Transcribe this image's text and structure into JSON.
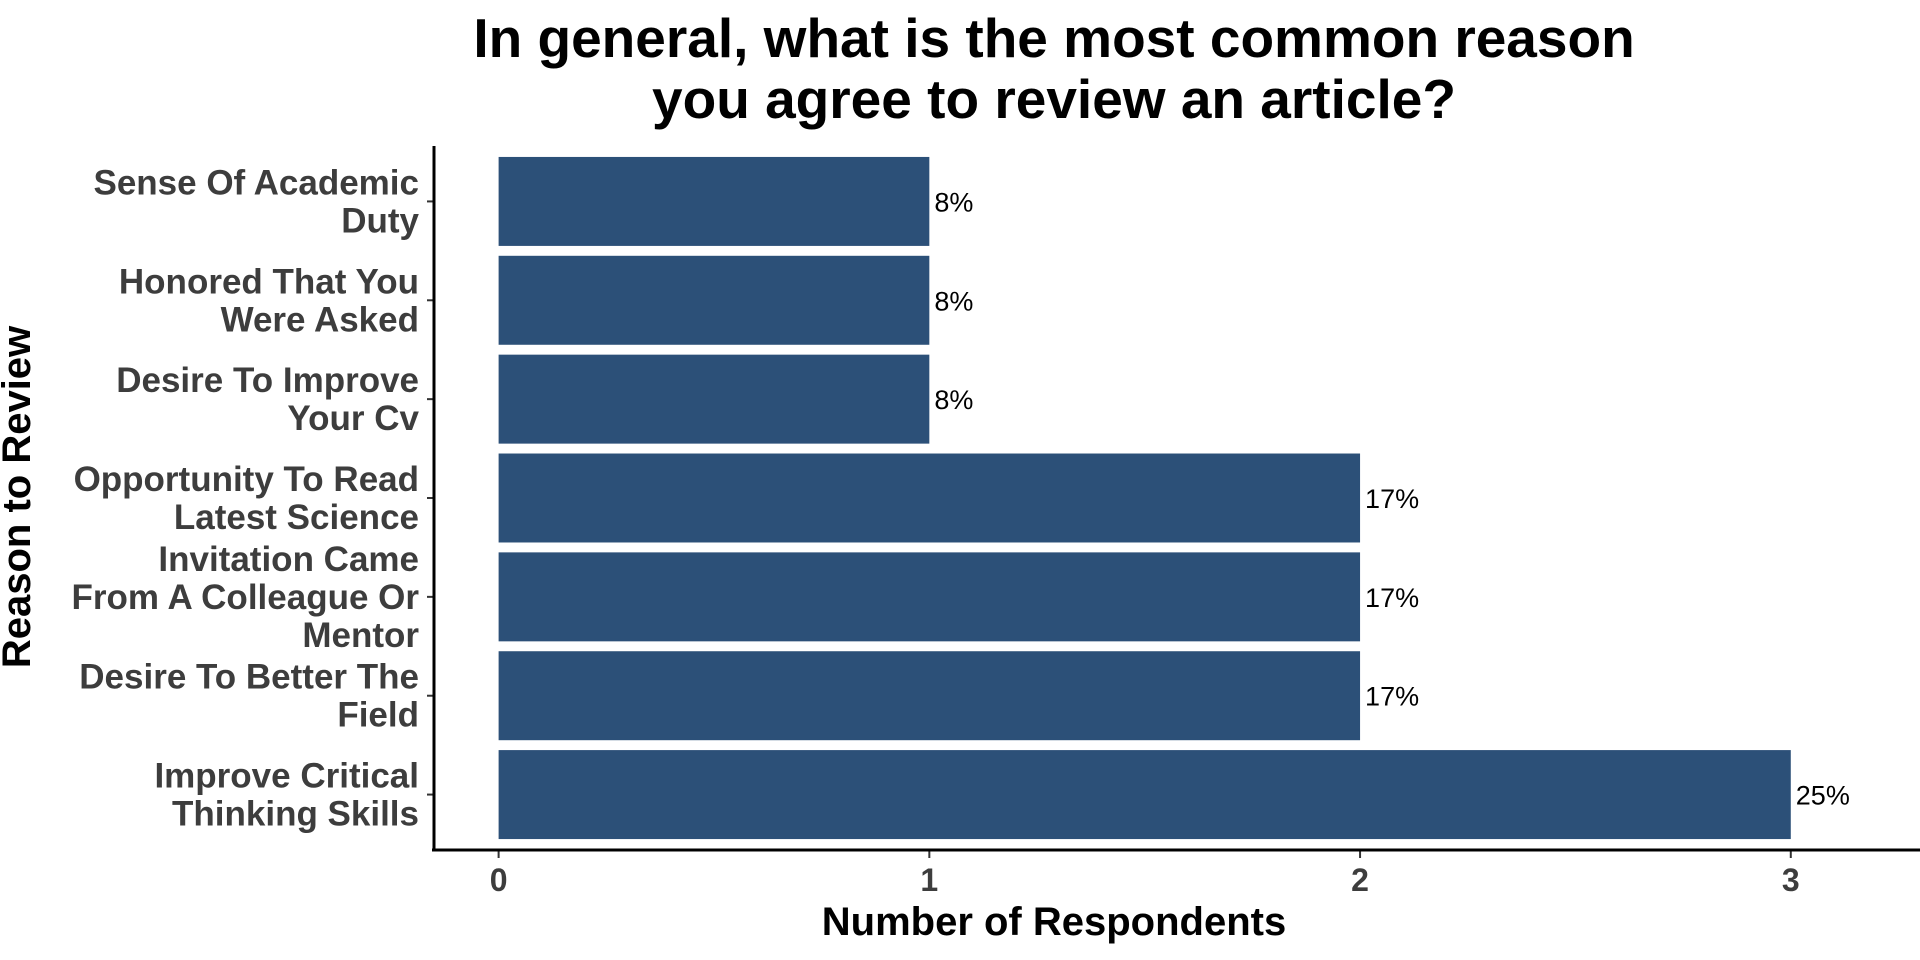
{
  "chart_data": {
    "type": "bar",
    "orientation": "horizontal",
    "title": "In general, what is the most common reason you agree to review an article?",
    "title_lines": [
      "In general, what is the most common reason",
      "you agree to review an article?"
    ],
    "xlabel": "Number of Respondents",
    "ylabel": "Reason to Review",
    "categories": [
      "Sense Of Academic Duty",
      "Honored That You Were Asked",
      "Desire To Improve Your Cv",
      "Opportunity To Read Latest Science",
      "Invitation Came From A Colleague Or Mentor",
      "Desire To Better The Field",
      "Improve Critical Thinking Skills"
    ],
    "category_lines": [
      [
        "Sense Of Academic",
        "Duty"
      ],
      [
        "Honored That You",
        "Were Asked"
      ],
      [
        "Desire To Improve",
        "Your Cv"
      ],
      [
        "Opportunity To Read",
        "Latest Science"
      ],
      [
        "Invitation Came",
        "From A Colleague Or",
        "Mentor"
      ],
      [
        "Desire To Better The",
        "Field"
      ],
      [
        "Improve Critical",
        "Thinking Skills"
      ]
    ],
    "values": [
      1,
      1,
      1,
      2,
      2,
      2,
      3
    ],
    "data_labels": [
      "8%",
      "8%",
      "8%",
      "17%",
      "17%",
      "17%",
      "25%"
    ],
    "xticks": [
      "0",
      "1",
      "2",
      "3"
    ],
    "xlim": [
      -0.15,
      3.3
    ],
    "grid": false,
    "legend": "none",
    "bar_color": "#2c5078"
  }
}
